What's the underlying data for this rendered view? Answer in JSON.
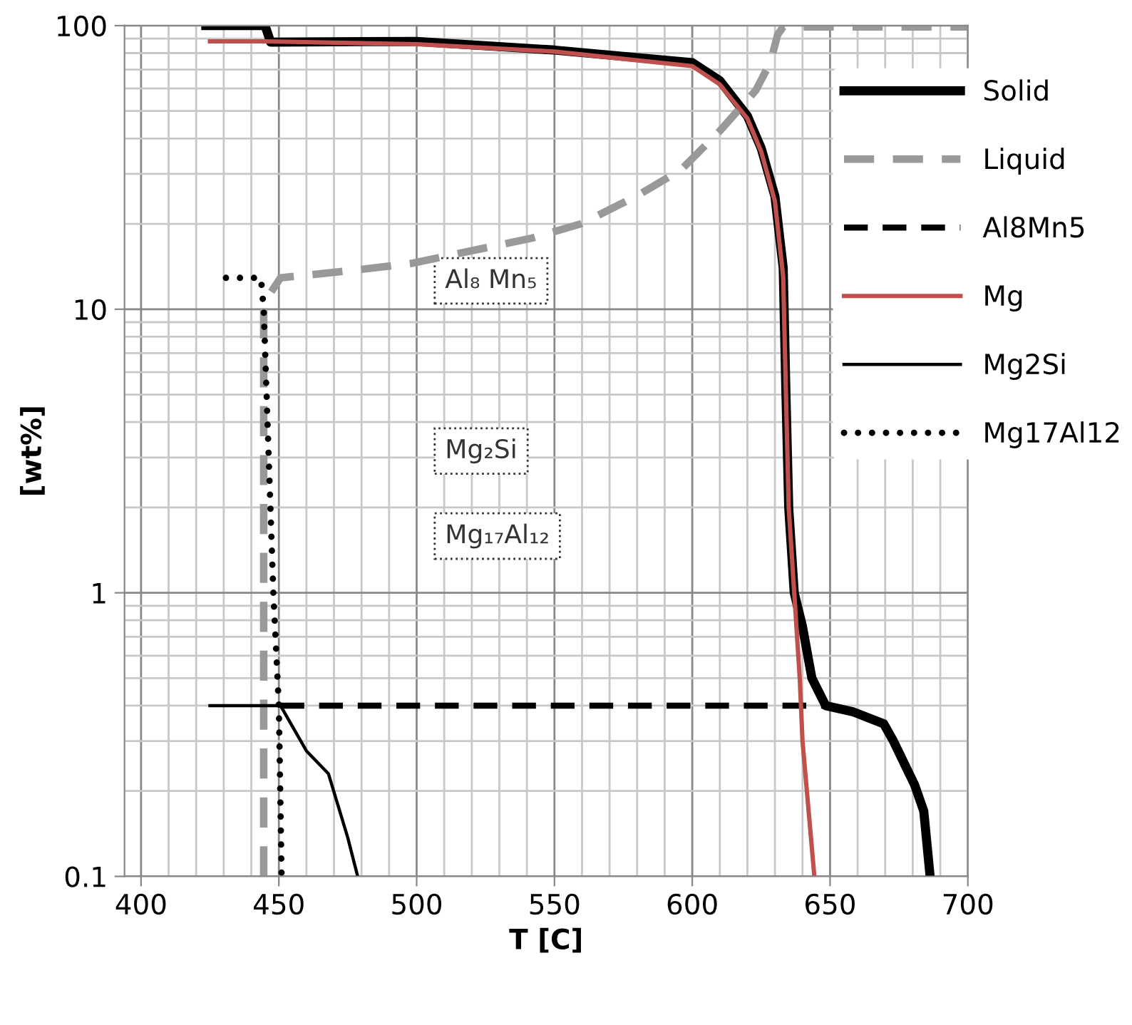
{
  "chart_data": {
    "type": "line",
    "xlabel": "T [C]",
    "ylabel": "[wt%]",
    "xlim": [
      394,
      700
    ],
    "xticks": [
      400,
      450,
      500,
      550,
      600,
      650,
      700
    ],
    "ylim": [
      0.1,
      100
    ],
    "yticks": [
      0.1,
      1,
      10,
      100
    ],
    "log": "y",
    "grid": true,
    "legend": "right",
    "marker": "none",
    "annotations": [
      "Al₈ Mn₅",
      "Mg₂Si",
      "Mg₁₇Al₁₂"
    ],
    "series": [
      {
        "name": "Solid",
        "color": "#000000",
        "line_style": "solid",
        "x": [
          423.5,
          445,
          447,
          500,
          550,
          600,
          610,
          620,
          625,
          630,
          633,
          634,
          635,
          637,
          640,
          643.4,
          648.4,
          658.5,
          669.5,
          673,
          680.7,
          684,
          686.3
        ],
        "values": [
          100,
          100,
          87.5,
          88,
          82,
          74,
          64,
          48,
          37,
          25,
          14,
          5,
          2,
          1,
          0.76,
          0.5,
          0.4,
          0.38,
          0.345,
          0.3,
          0.21,
          0.17,
          0.1
        ]
      },
      {
        "name": "Liquid",
        "color": "#999999",
        "line_style": "dashed",
        "x": [
          444.5,
          444.5,
          450.6,
          476.6,
          498,
          541.7,
          559.6,
          579.6,
          595.9,
          610,
          623,
          628.3,
          631,
          633,
          700
        ],
        "values": [
          0.1,
          10.5,
          12.9,
          13.7,
          14.5,
          17.8,
          20,
          25,
          31,
          42.5,
          59,
          74,
          93,
          99,
          99
        ]
      },
      {
        "name": "Al8Mn5",
        "color": "#000000",
        "line_style": "dashed",
        "x": [
          450.6,
          648
        ],
        "values": [
          0.4,
          0.4
        ]
      },
      {
        "name": "Mg",
        "color": "#c0504d",
        "line_style": "solid",
        "x": [
          425,
          445,
          500,
          550,
          600,
          610,
          620,
          625,
          630,
          633,
          634,
          635,
          637,
          639,
          640,
          644.3
        ],
        "values": [
          88,
          88,
          86,
          81,
          72,
          62,
          47,
          36,
          24,
          13,
          5,
          2,
          1,
          0.5,
          0.3,
          0.1
        ]
      },
      {
        "name": "Mg2Si",
        "color": "#000000",
        "line_style": "solid",
        "x": [
          425,
          450.6,
          460,
          468,
          475,
          478.6
        ],
        "values": [
          0.4,
          0.4,
          0.277,
          0.23,
          0.137,
          0.1
        ]
      },
      {
        "name": "Mg17Al12",
        "color": "#000000",
        "line_style": "dotted",
        "x": [
          430.8,
          443.5,
          444.5,
          448,
          450,
          451
        ],
        "values": [
          12.9,
          12.9,
          10,
          1,
          0.4,
          0.1
        ]
      }
    ]
  }
}
